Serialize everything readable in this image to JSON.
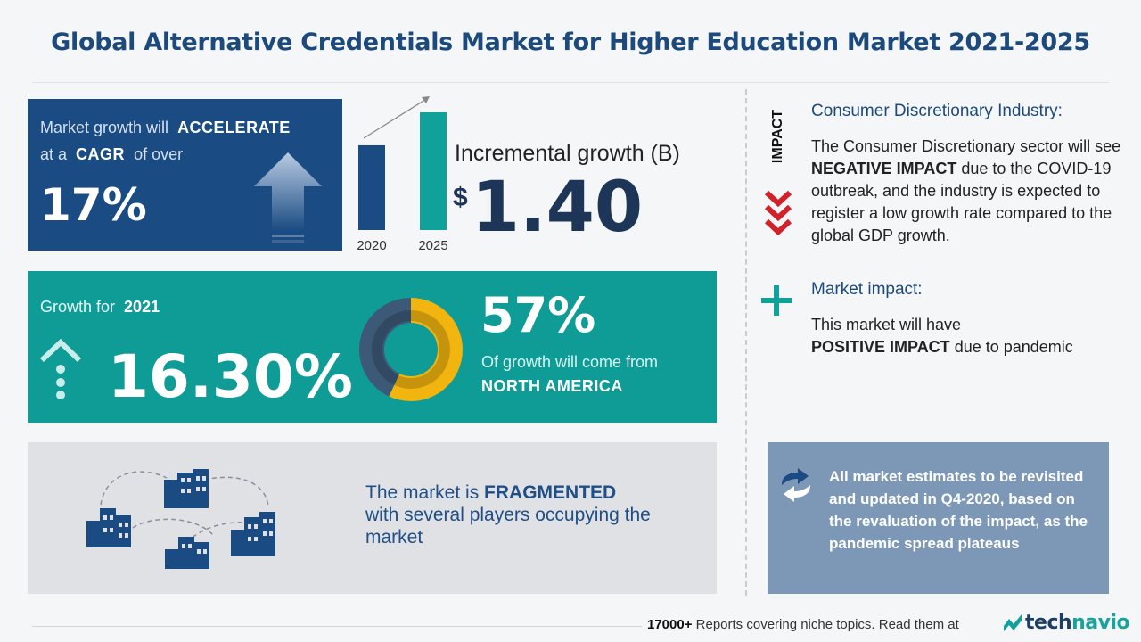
{
  "title": "Global Alternative Credentials Market for Higher Education Market 2021-2025",
  "cagr": {
    "line1_prefix": "Market growth will",
    "line1_emph": "ACCELERATE",
    "line2_prefix": "at a",
    "line2_emph": "CAGR",
    "line2_suffix": "of over",
    "value": "17%"
  },
  "incremental": {
    "label": "Incremental growth (B)",
    "currency": "$",
    "value": "1.40",
    "bars": [
      {
        "year": "2020",
        "relative_height": 0.72,
        "color": "#1a4b82"
      },
      {
        "year": "2025",
        "relative_height": 1.0,
        "color": "#10a19b"
      }
    ]
  },
  "growth": {
    "label_prefix": "Growth for",
    "year": "2021",
    "value": "16.30%",
    "region_share": 57,
    "region_pct": "57%",
    "region_text": "Of growth will come from",
    "region_name": "NORTH AMERICA",
    "donut_colors": {
      "main": "#f2b50f",
      "rest": "#3c5a78"
    }
  },
  "fragmented": {
    "prefix": "The market is",
    "emph": "FRAGMENTED",
    "rest": "with several players occupying the market"
  },
  "impact": {
    "vertical_label": "IMPACT",
    "industry_head": "Consumer Discretionary Industry:",
    "industry_text_1": "The Consumer Discretionary sector will see",
    "industry_emph": "NEGATIVE IMPACT",
    "industry_text_2": "due to the COVID-19 outbreak, and the industry is expected to register a low growth rate compared to the global GDP growth.",
    "market_head": "Market impact:",
    "market_text_1": "This market will have",
    "market_emph": "POSITIVE IMPACT",
    "market_text_2": "due to pandemic"
  },
  "note": "All market estimates to be revisited and updated in Q4-2020, based on the revaluation of the impact, as the pandemic spread plateaus",
  "footer": {
    "count": "17000+",
    "text": "Reports covering niche topics. Read them at",
    "logo_a": "tech",
    "logo_b": "navio"
  }
}
